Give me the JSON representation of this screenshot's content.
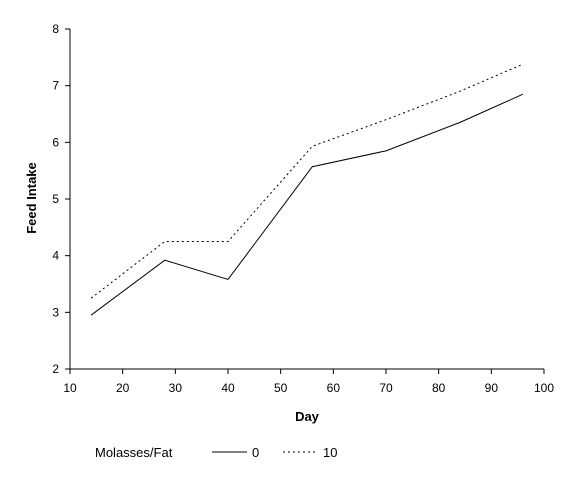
{
  "chart_data": {
    "type": "line",
    "xlabel": "Day",
    "ylabel": "Feed Intake",
    "xlim": [
      10,
      100
    ],
    "ylim": [
      2,
      8
    ],
    "xticks": [
      10,
      20,
      30,
      40,
      50,
      60,
      70,
      80,
      90,
      100
    ],
    "yticks": [
      2,
      3,
      4,
      5,
      6,
      7,
      8
    ],
    "grid": false,
    "legend": {
      "title": "Molasses/Fat",
      "placement": "bottom-left"
    },
    "series": [
      {
        "name": "0",
        "style": "solid",
        "color": "#000000",
        "x": [
          14,
          28,
          40,
          56,
          70,
          84,
          96
        ],
        "y": [
          2.95,
          3.92,
          3.58,
          5.57,
          5.85,
          6.35,
          6.85
        ]
      },
      {
        "name": "10",
        "style": "dotted",
        "color": "#000000",
        "x": [
          14,
          28,
          40,
          56,
          70,
          84,
          96
        ],
        "y": [
          3.25,
          4.25,
          4.25,
          5.93,
          6.4,
          6.9,
          7.38
        ]
      }
    ]
  }
}
